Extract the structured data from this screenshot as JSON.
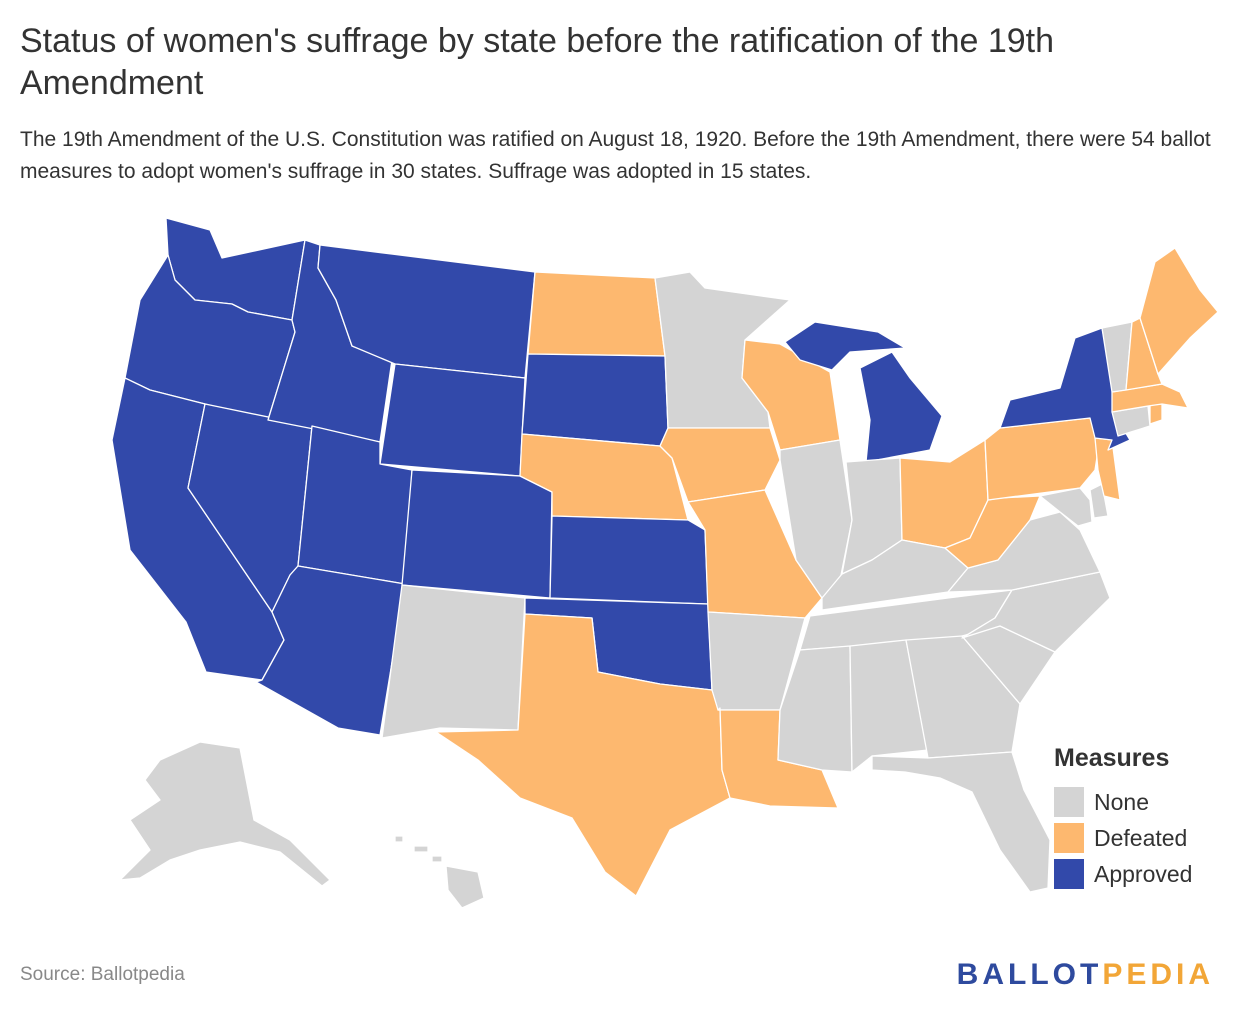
{
  "title": "Status of women's suffrage by state before the ratification of the 19th Amendment",
  "subtitle": "The 19th Amendment of the U.S. Constitution was ratified on August 18, 1920. Before the 19th Amendment, there were 54 ballot measures to adopt women's suffrage in 30 states. Suffrage was adopted in 15 states.",
  "colors": {
    "None": "#d4d4d4",
    "Defeated": "#fdb86f",
    "Approved": "#3249aa"
  },
  "legend": {
    "title": "Measures",
    "items": [
      {
        "key": "None",
        "label": "None"
      },
      {
        "key": "Defeated",
        "label": "Defeated"
      },
      {
        "key": "Approved",
        "label": "Approved"
      }
    ]
  },
  "source": "Source: Ballotpedia",
  "logo": {
    "part1": "BALLOT",
    "part2": "PEDIA"
  },
  "states": {
    "WA": "Approved",
    "OR": "Approved",
    "CA": "Approved",
    "NV": "Approved",
    "ID": "Approved",
    "MT": "Approved",
    "WY": "Approved",
    "UT": "Approved",
    "AZ": "Approved",
    "CO": "Approved",
    "SD": "Approved",
    "KS": "Approved",
    "OK": "Approved",
    "MI": "Approved",
    "NY": "Approved",
    "ND": "Defeated",
    "NE": "Defeated",
    "TX": "Defeated",
    "IA": "Defeated",
    "MO": "Defeated",
    "LA": "Defeated",
    "WI": "Defeated",
    "OH": "Defeated",
    "WV": "Defeated",
    "PA": "Defeated",
    "NJ": "Defeated",
    "ME": "Defeated",
    "NH": "Defeated",
    "MA": "Defeated",
    "RI": "Defeated",
    "NM": "None",
    "MN": "None",
    "AR": "None",
    "IL": "None",
    "IN": "None",
    "KY": "None",
    "TN": "None",
    "MS": "None",
    "AL": "None",
    "GA": "None",
    "FL": "None",
    "SC": "None",
    "NC": "None",
    "VA": "None",
    "MD": "None",
    "DE": "None",
    "CT": "None",
    "VT": "None",
    "AK": "None",
    "HI": "None"
  }
}
